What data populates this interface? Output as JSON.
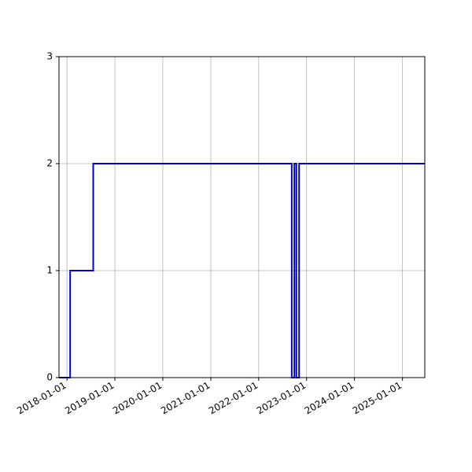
{
  "chart_data": {
    "type": "line",
    "title": "",
    "xlabel": "",
    "ylabel": "",
    "x_axis": "date",
    "xlim": [
      "2017-11-01",
      "2025-06-20"
    ],
    "ylim": [
      0,
      3
    ],
    "xticks": [
      "2018-01-01",
      "2019-01-01",
      "2020-01-01",
      "2021-01-01",
      "2022-01-01",
      "2023-01-01",
      "2024-01-01",
      "2025-01-01"
    ],
    "yticks": [
      "0",
      "1",
      "2",
      "3"
    ],
    "grid": true,
    "line_style": "steps",
    "series": [
      {
        "color": "#0000cc",
        "points": [
          {
            "x": "2017-11-01",
            "y": 0
          },
          {
            "x": "2018-01-25",
            "y": 0
          },
          {
            "x": "2018-01-25",
            "y": 1
          },
          {
            "x": "2018-07-20",
            "y": 1
          },
          {
            "x": "2018-07-20",
            "y": 2
          },
          {
            "x": "2022-09-10",
            "y": 2
          },
          {
            "x": "2022-09-10",
            "y": 0
          },
          {
            "x": "2022-09-30",
            "y": 0
          },
          {
            "x": "2022-09-30",
            "y": 2
          },
          {
            "x": "2022-10-15",
            "y": 2
          },
          {
            "x": "2022-10-15",
            "y": 0
          },
          {
            "x": "2022-11-05",
            "y": 0
          },
          {
            "x": "2022-11-05",
            "y": 2
          },
          {
            "x": "2025-06-20",
            "y": 2
          }
        ]
      }
    ]
  }
}
